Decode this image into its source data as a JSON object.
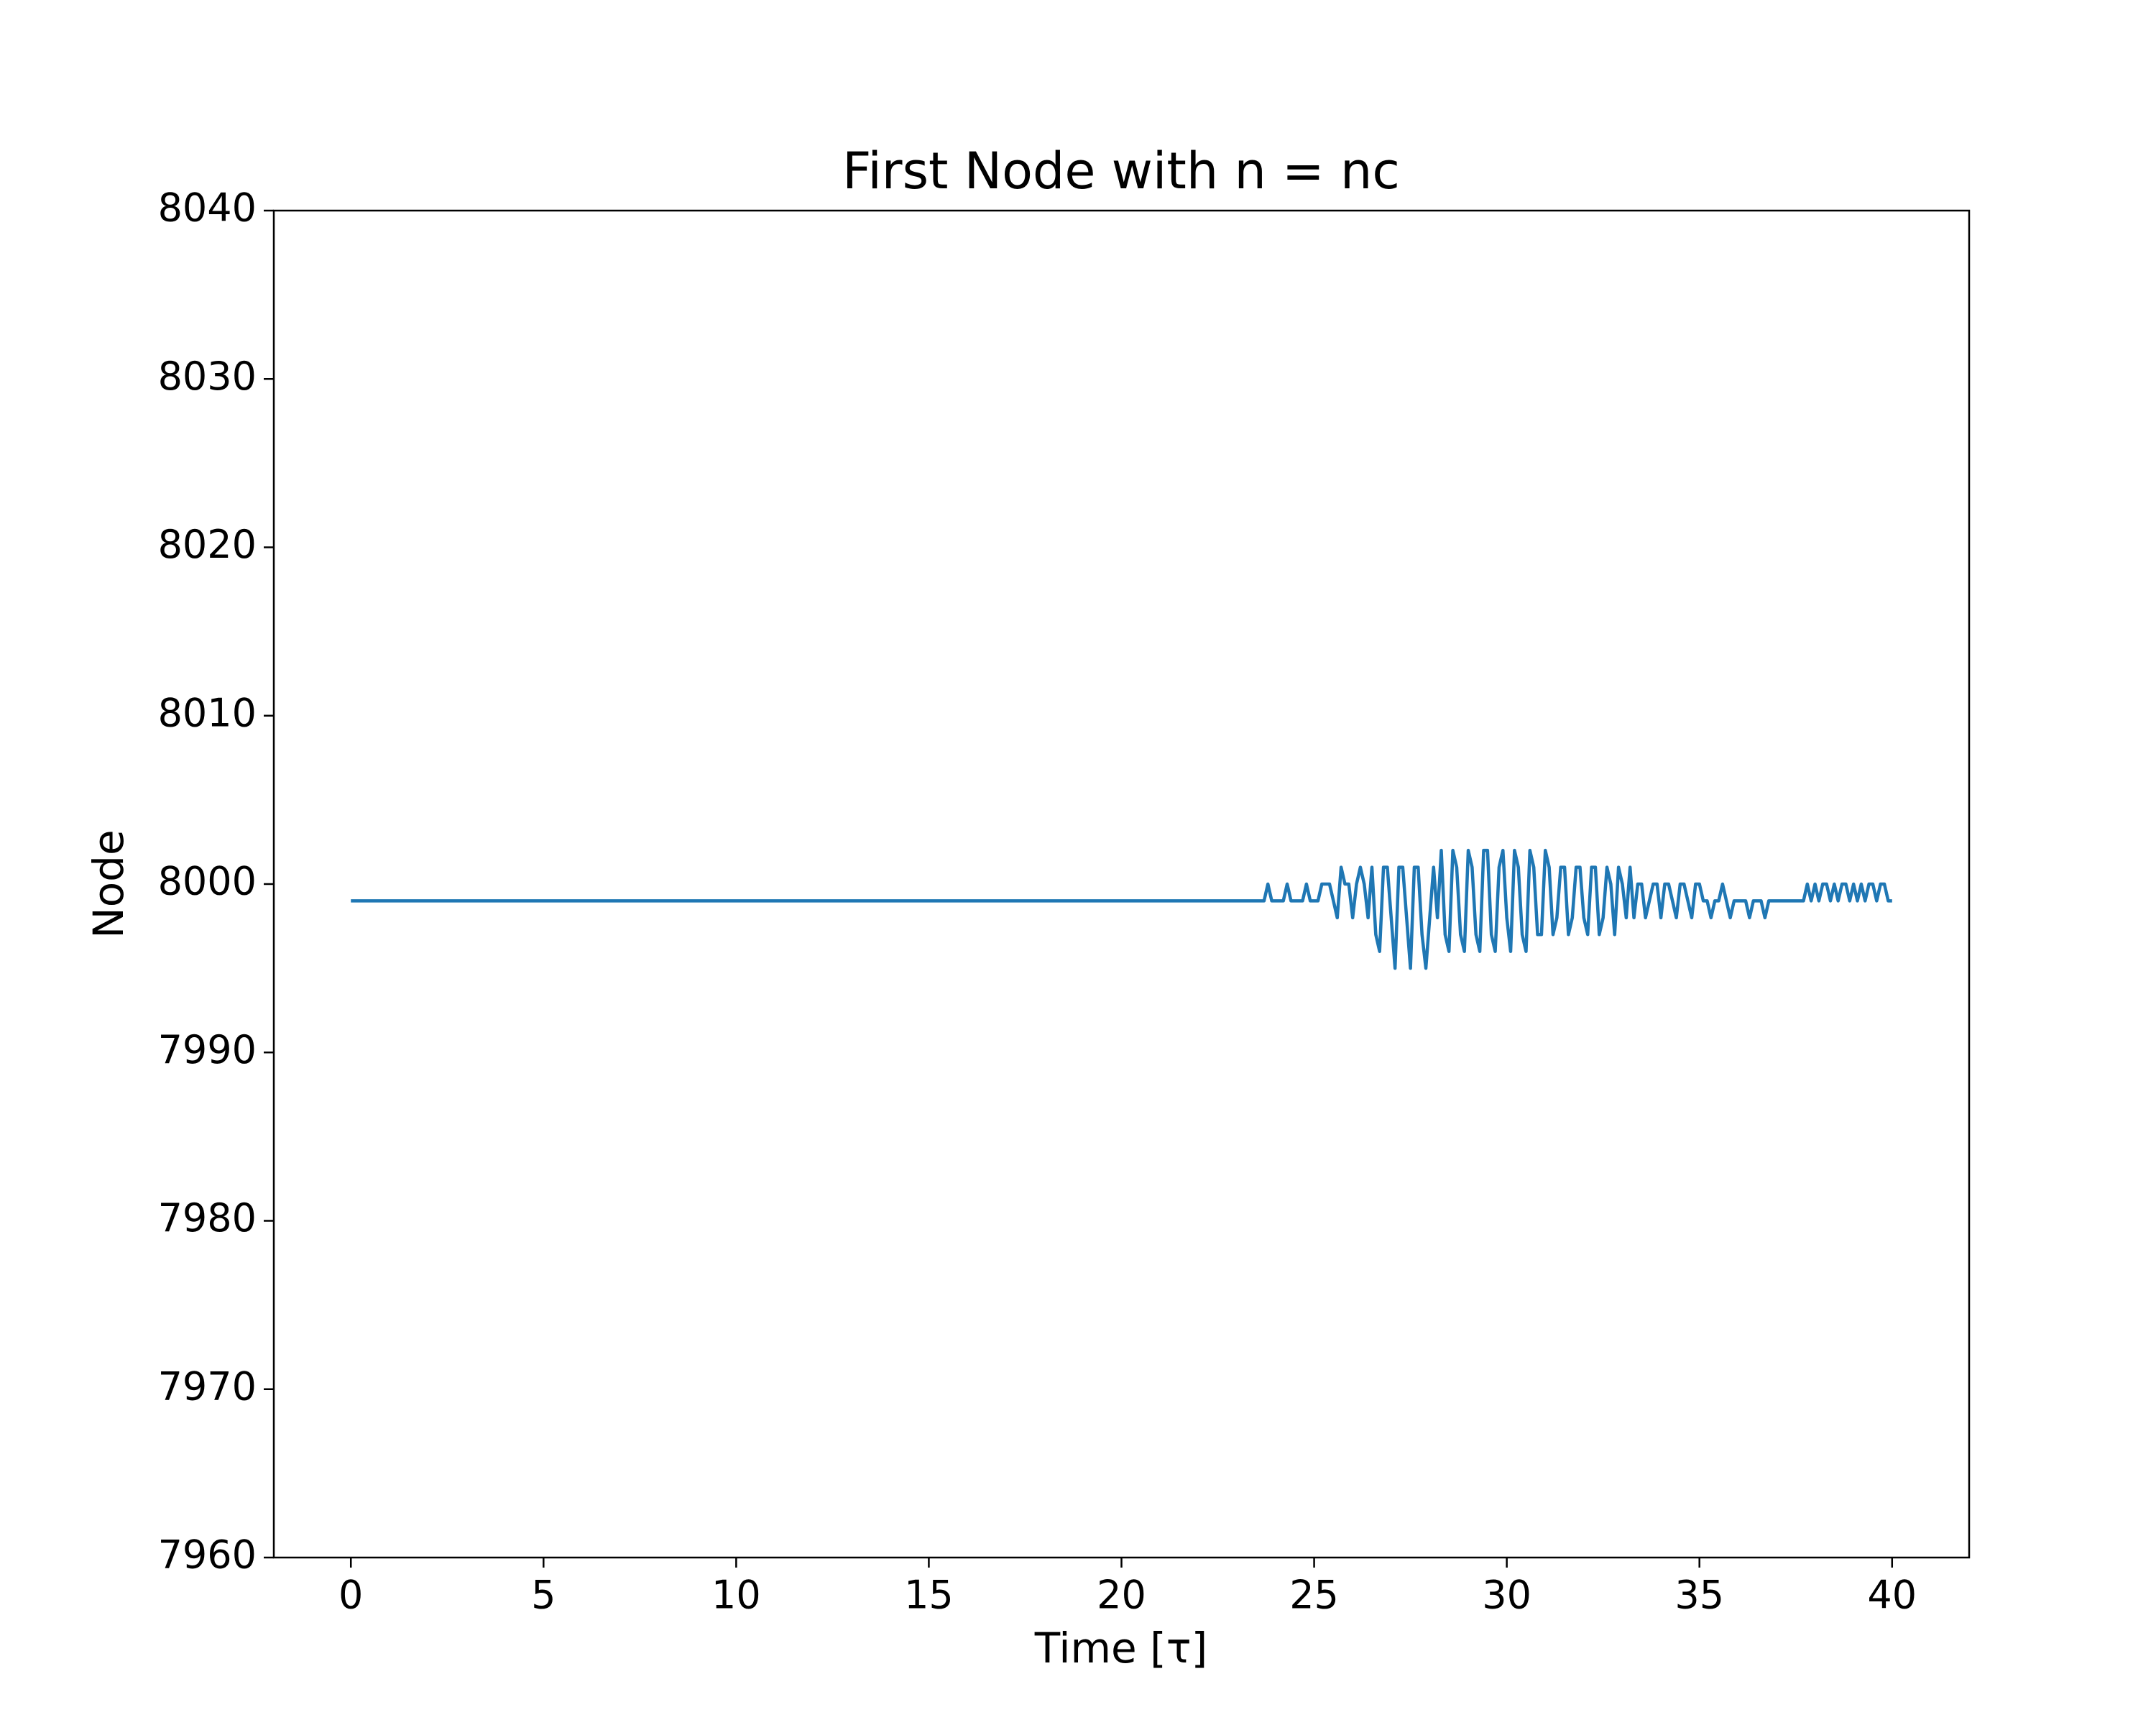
{
  "chart_data": {
    "type": "line",
    "title": "First Node with n = nc",
    "xlabel": "Time [τ]",
    "ylabel": "Node",
    "xlim": [
      -2,
      42
    ],
    "xticks": [
      0,
      5,
      10,
      15,
      20,
      25,
      30,
      35,
      40
    ],
    "ylim": [
      7960,
      8040
    ],
    "yticks": [
      7960,
      7970,
      7980,
      7990,
      8000,
      8010,
      8020,
      8030,
      8040
    ],
    "grid": false,
    "x": [
      0,
      23.7,
      23.8,
      23.9,
      24.2,
      24.3,
      24.4,
      24.7,
      24.8,
      24.9,
      25.1,
      25.2,
      25.3,
      25.4,
      25.5,
      25.6,
      25.7,
      25.8,
      25.9,
      26.0,
      26.1,
      26.2,
      26.3,
      26.4,
      26.5,
      26.6,
      26.7,
      26.8,
      26.9,
      27.0,
      27.1,
      27.2,
      27.3,
      27.4,
      27.5,
      27.6,
      27.7,
      27.8,
      27.9,
      28.0,
      28.1,
      28.2,
      28.3,
      28.4,
      28.5,
      28.6,
      28.7,
      28.8,
      28.9,
      29.0,
      29.1,
      29.2,
      29.3,
      29.4,
      29.5,
      29.6,
      29.7,
      29.8,
      29.9,
      30.0,
      30.1,
      30.2,
      30.3,
      30.4,
      30.5,
      30.6,
      30.7,
      30.8,
      30.9,
      31.0,
      31.1,
      31.2,
      31.3,
      31.4,
      31.5,
      31.6,
      31.7,
      31.8,
      31.9,
      32.0,
      32.1,
      32.2,
      32.3,
      32.4,
      32.5,
      32.6,
      32.7,
      32.8,
      32.9,
      33.0,
      33.1,
      33.2,
      33.3,
      33.4,
      33.5,
      33.6,
      33.7,
      33.8,
      33.9,
      34.0,
      34.1,
      34.2,
      34.3,
      34.4,
      34.5,
      34.6,
      34.7,
      34.8,
      34.9,
      35.0,
      35.1,
      35.2,
      35.3,
      35.4,
      35.5,
      35.6,
      35.7,
      35.8,
      35.9,
      36.0,
      36.1,
      36.2,
      36.3,
      36.4,
      36.5,
      36.6,
      36.7,
      36.8,
      37.7,
      37.8,
      37.9,
      38.0,
      38.1,
      38.2,
      38.3,
      38.4,
      38.5,
      38.6,
      38.7,
      38.8,
      38.9,
      39.0,
      39.1,
      39.2,
      39.3,
      39.4,
      39.5,
      39.6,
      39.7,
      39.8,
      39.9,
      40.0
    ],
    "series": [
      {
        "color": "#1f77b4",
        "values": [
          7999,
          7999,
          8000,
          7999,
          7999,
          8000,
          7999,
          7999,
          8000,
          7999,
          7999,
          8000,
          8000,
          8000,
          7999,
          7998,
          8001,
          8000,
          8000,
          7998,
          8000,
          8001,
          8000,
          7998,
          8001,
          7997,
          7996,
          8001,
          8001,
          7998,
          7995,
          8001,
          8001,
          7998,
          7995,
          8001,
          8001,
          7997,
          7995,
          7998,
          8001,
          7998,
          8002,
          7997,
          7996,
          8002,
          8001,
          7997,
          7996,
          8002,
          8001,
          7997,
          7996,
          8002,
          8002,
          7997,
          7996,
          8001,
          8002,
          7998,
          7996,
          8002,
          8001,
          7997,
          7996,
          8002,
          8001,
          7997,
          7997,
          8002,
          8001,
          7997,
          7998,
          8001,
          8001,
          7997,
          7998,
          8001,
          8001,
          7998,
          7997,
          8001,
          8001,
          7997,
          7998,
          8001,
          8000,
          7997,
          8001,
          8000,
          7998,
          8001,
          7998,
          8000,
          8000,
          7998,
          7999,
          8000,
          8000,
          7998,
          8000,
          8000,
          7999,
          7998,
          8000,
          8000,
          7999,
          7998,
          8000,
          8000,
          7999,
          7999,
          7998,
          7999,
          7999,
          8000,
          7999,
          7998,
          7999,
          7999,
          7999,
          7999,
          7998,
          7999,
          7999,
          7999,
          7998,
          7999,
          7999,
          8000,
          7999,
          8000,
          7999,
          8000,
          8000,
          7999,
          8000,
          7999,
          8000,
          8000,
          7999,
          8000,
          7999,
          8000,
          7999,
          8000,
          8000,
          7999,
          8000,
          8000,
          7999,
          7999
        ]
      }
    ]
  }
}
